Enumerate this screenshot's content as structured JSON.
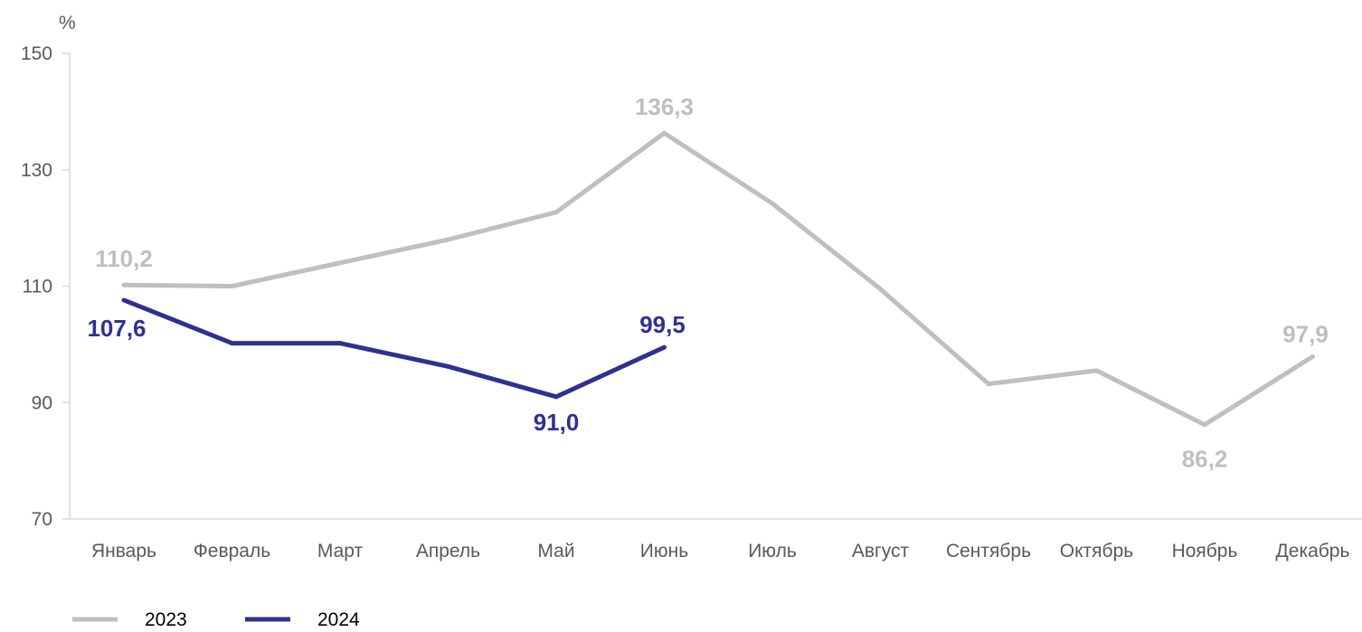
{
  "chart_data": {
    "type": "line",
    "unit_label": "%",
    "categories": [
      "Январь",
      "Февраль",
      "Март",
      "Апрель",
      "Май",
      "Июнь",
      "Июль",
      "Август",
      "Сентябрь",
      "Октябрь",
      "Ноябрь",
      "Декабрь"
    ],
    "ylim": [
      70,
      150
    ],
    "yticks": [
      "150",
      "130",
      "110",
      "90",
      "70"
    ],
    "grid": false,
    "legend_position": "bottom-left",
    "series": [
      {
        "name": "2023",
        "color": "#bfbfbf",
        "values": [
          110.2,
          110.0,
          114.0,
          118.0,
          122.7,
          136.3,
          124.2,
          109.5,
          93.2,
          95.5,
          86.2,
          97.9
        ],
        "point_labels": [
          "110,2",
          null,
          null,
          null,
          null,
          "136,3",
          null,
          null,
          null,
          null,
          "86,2",
          "97,9"
        ]
      },
      {
        "name": "2024",
        "color": "#2e3192",
        "values": [
          107.6,
          100.2,
          100.2,
          96.2,
          91.0,
          99.5,
          null,
          null,
          null,
          null,
          null,
          null
        ],
        "point_labels": [
          "107,6",
          null,
          null,
          null,
          "91,0",
          "99,5",
          null,
          null,
          null,
          null,
          null,
          null
        ]
      }
    ]
  }
}
